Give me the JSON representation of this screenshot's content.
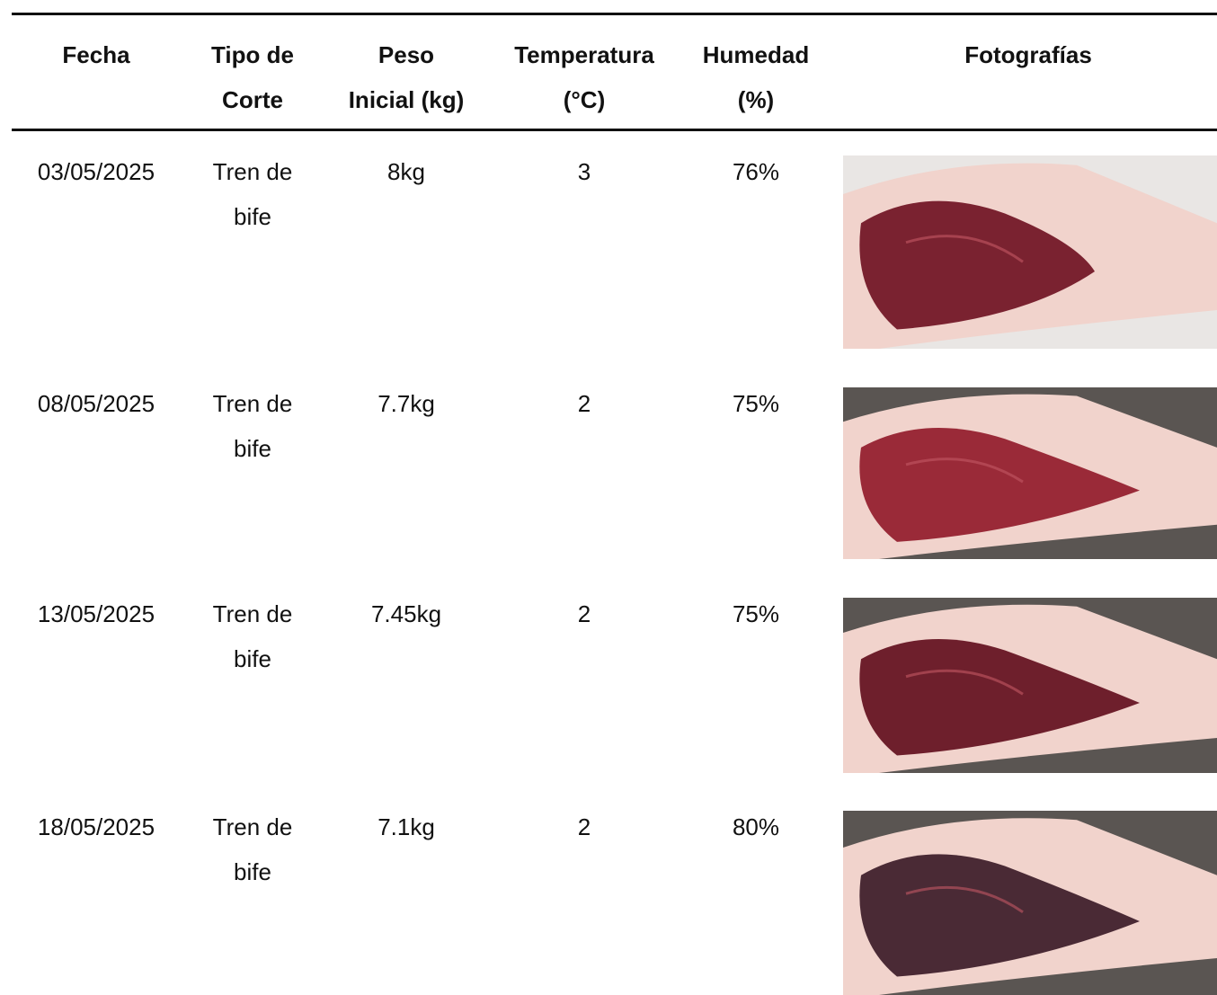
{
  "table": {
    "header": [
      [
        "Fecha"
      ],
      [
        "Tipo de",
        "Corte"
      ],
      [
        "Peso",
        "Inicial (kg)"
      ],
      [
        "Temperatura",
        "(°C)"
      ],
      [
        "Humedad",
        "(%)"
      ],
      [
        "Fotografías"
      ]
    ],
    "rows": [
      [
        "03/05/2025",
        [
          "Tren de",
          "bife"
        ],
        "8kg",
        "3",
        "76%"
      ],
      [
        "08/05/2025",
        [
          "Tren de",
          "bife"
        ],
        "7.7kg",
        "2",
        "75%"
      ],
      [
        "13/05/2025",
        [
          "Tren de",
          "bife"
        ],
        "7.45kg",
        "2",
        "75%"
      ],
      [
        "18/05/2025",
        [
          "Tren de",
          "bife"
        ],
        "7.1kg",
        "2",
        "80%"
      ]
    ]
  }
}
